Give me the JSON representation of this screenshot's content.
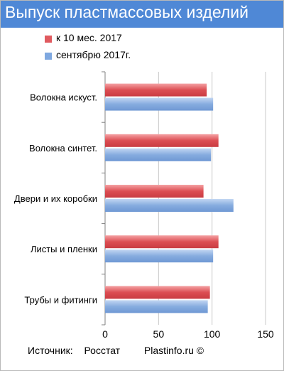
{
  "title": "Выпуск пластмассовых изделий",
  "legend": [
    {
      "label": "к 10 мес. 2017",
      "color": "#e05a5f"
    },
    {
      "label": "сентябрю 2017г.",
      "color": "#7fa8e0"
    }
  ],
  "chart_data": {
    "type": "bar",
    "orientation": "horizontal",
    "categories": [
      "Волокна искуст.",
      "Волокна синтет.",
      "Двери и их коробки",
      "Листы и пленки",
      "Трубы и фитинги"
    ],
    "series": [
      {
        "name": "к 10 мес. 2017",
        "values": [
          95,
          106,
          92,
          106,
          98
        ],
        "color": "#e05a5f"
      },
      {
        "name": "сентябрю 2017г.",
        "values": [
          101,
          99,
          120,
          101,
          96
        ],
        "color": "#7fa8e0"
      }
    ],
    "xlim": [
      0,
      150
    ],
    "xticks": [
      "0",
      "50",
      "100",
      "150"
    ],
    "grid": true,
    "legend_position": "top-left"
  },
  "footer": {
    "source_label": "Источник:",
    "source_name": "Росстат",
    "credit": "Plastinfo.ru ©"
  }
}
